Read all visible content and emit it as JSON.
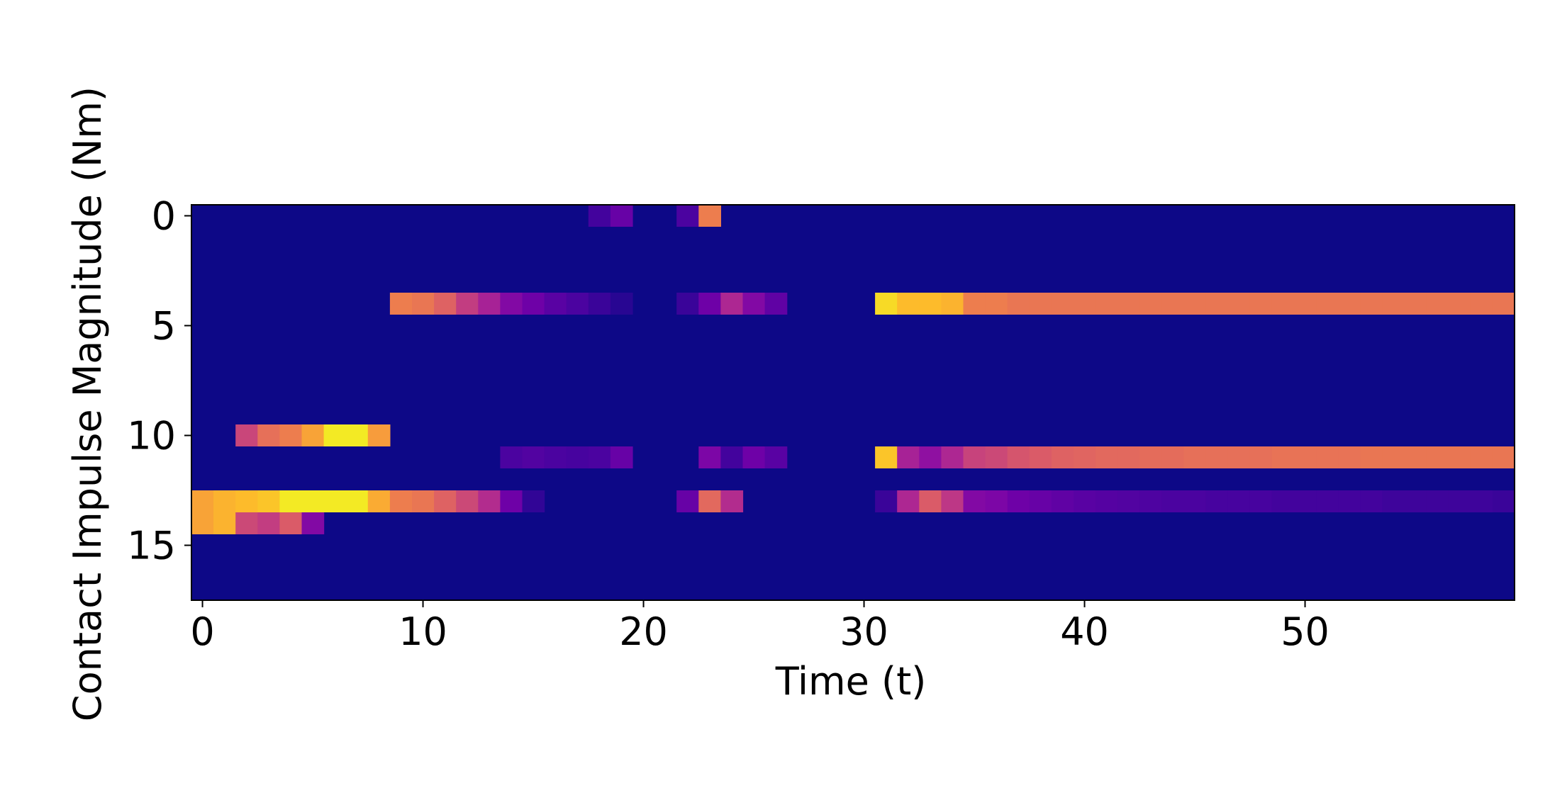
{
  "chart_data": {
    "type": "heatmap",
    "title": "",
    "xlabel": "Time (t)",
    "ylabel": "Contact Impulse Magnitude (Nm)",
    "x_range": [
      -0.5,
      59.5
    ],
    "y_range": [
      -0.5,
      17.5
    ],
    "y_inverted": true,
    "x_ticks": [
      0,
      10,
      20,
      30,
      40,
      50
    ],
    "y_ticks": [
      0,
      5,
      10,
      15
    ],
    "colormap": "plasma",
    "background_value": 0,
    "value_scale": [
      0,
      1
    ],
    "grid": false,
    "legend": "none",
    "rows": [
      {
        "row": 0,
        "segments": [
          {
            "start": 18,
            "values": [
              0.12,
              0.22
            ]
          },
          {
            "start": 22,
            "values": [
              0.14,
              0.72
            ]
          }
        ]
      },
      {
        "row": 4,
        "segments": [
          {
            "start": 9,
            "values": [
              0.72,
              0.7,
              0.64,
              0.52,
              0.42,
              0.3,
              0.24,
              0.18,
              0.14,
              0.1,
              0.06
            ]
          },
          {
            "start": 22,
            "values": [
              0.1,
              0.24,
              0.44,
              0.3,
              0.2
            ]
          },
          {
            "start": 31,
            "values": [
              0.94,
              0.88,
              0.88,
              0.86,
              0.72,
              0.72,
              0.7,
              0.7,
              0.7,
              0.7,
              0.7,
              0.7,
              0.7,
              0.7,
              0.7,
              0.7,
              0.7,
              0.7,
              0.7,
              0.7,
              0.7,
              0.7,
              0.7,
              0.7,
              0.7,
              0.7,
              0.7,
              0.7,
              0.7
            ]
          }
        ]
      },
      {
        "row": 10,
        "segments": [
          {
            "start": 2,
            "values": [
              0.55,
              0.68,
              0.72,
              0.82,
              0.97,
              0.97,
              0.8
            ]
          }
        ]
      },
      {
        "row": 11,
        "segments": [
          {
            "start": 14,
            "values": [
              0.14,
              0.16,
              0.14,
              0.13,
              0.14,
              0.22
            ]
          },
          {
            "start": 23,
            "values": [
              0.28,
              0.12,
              0.24,
              0.18
            ]
          },
          {
            "start": 31,
            "values": [
              0.9,
              0.42,
              0.34,
              0.44,
              0.54,
              0.56,
              0.6,
              0.62,
              0.64,
              0.65,
              0.66,
              0.66,
              0.67,
              0.67,
              0.68,
              0.68,
              0.68,
              0.68,
              0.69,
              0.69,
              0.69,
              0.69,
              0.7,
              0.7,
              0.7,
              0.7,
              0.7,
              0.7,
              0.7
            ]
          }
        ]
      },
      {
        "row": 13,
        "segments": [
          {
            "start": 0,
            "values": [
              0.82,
              0.86,
              0.88,
              0.9,
              0.97,
              0.97,
              0.97,
              0.97,
              0.84,
              0.72,
              0.7,
              0.64,
              0.56,
              0.46,
              0.24,
              0.08
            ]
          },
          {
            "start": 22,
            "values": [
              0.22,
              0.66,
              0.46
            ]
          },
          {
            "start": 31,
            "values": [
              0.1,
              0.44,
              0.62,
              0.5,
              0.3,
              0.28,
              0.24,
              0.22,
              0.2,
              0.18,
              0.17,
              0.16,
              0.15,
              0.14,
              0.14,
              0.13,
              0.13,
              0.13,
              0.12,
              0.12,
              0.12,
              0.12,
              0.12,
              0.11,
              0.11,
              0.11,
              0.11,
              0.11,
              0.1
            ]
          }
        ]
      },
      {
        "row": 14,
        "segments": [
          {
            "start": 0,
            "values": [
              0.82,
              0.86,
              0.56,
              0.52,
              0.62,
              0.3
            ]
          }
        ]
      }
    ]
  }
}
